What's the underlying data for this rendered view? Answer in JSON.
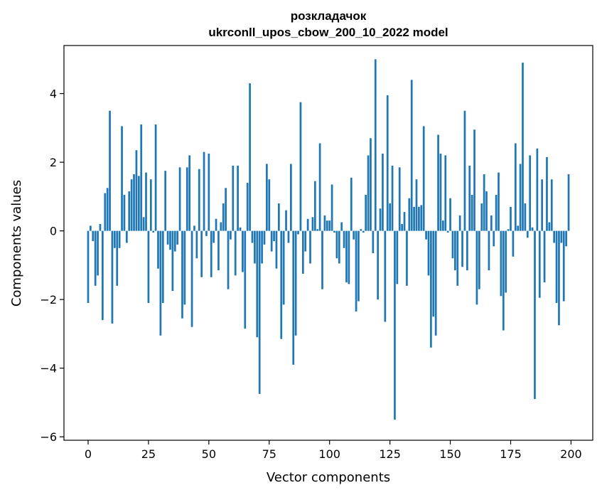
{
  "chart_data": {
    "type": "bar",
    "title": "розкладачок",
    "subtitle": "ukrconll_upos_cbow_200_10_2022 model",
    "xlabel": "Vector components",
    "ylabel": "Components values",
    "xlim": [
      -10,
      209
    ],
    "ylim": [
      -6.1,
      5.4
    ],
    "xticks": [
      0,
      25,
      50,
      75,
      100,
      125,
      150,
      175,
      200
    ],
    "yticks": [
      -6,
      -4,
      -2,
      0,
      2,
      4
    ],
    "ytick_labels": [
      "−6",
      "−4",
      "−2",
      "0",
      "2",
      "4"
    ],
    "grid": false,
    "bar_color": "#1f77b4",
    "values": [
      -2.1,
      0.15,
      -0.3,
      -1.6,
      -1.3,
      0.2,
      -2.6,
      1.1,
      1.25,
      3.5,
      -2.7,
      -0.5,
      -1.6,
      -0.5,
      3.05,
      1.05,
      -0.35,
      1.15,
      1.5,
      1.65,
      2.35,
      1.6,
      3.1,
      0.4,
      1.7,
      -2.1,
      1.5,
      -0.05,
      3.1,
      -1.1,
      -3.05,
      -2.1,
      1.75,
      -0.4,
      -0.55,
      -1.75,
      -0.6,
      -0.4,
      1.85,
      -2.55,
      -2.15,
      1.85,
      2.2,
      -2.8,
      0.15,
      -0.8,
      1.8,
      -1.35,
      2.3,
      -0.15,
      2.25,
      -1.35,
      -0.35,
      0.35,
      -1.15,
      0.25,
      0.8,
      1.25,
      -1.7,
      -0.25,
      1.9,
      -1.3,
      1.9,
      0.1,
      -1.2,
      -2.85,
      1.4,
      4.3,
      -0.35,
      -0.95,
      -3.1,
      -4.75,
      -0.95,
      -0.4,
      1.95,
      1.5,
      -0.6,
      -0.3,
      -1.1,
      0.8,
      -3.15,
      -2.15,
      0.6,
      -0.35,
      1.95,
      -3.9,
      -3.05,
      -0.1,
      3.75,
      -1.25,
      -0.6,
      0.35,
      -0.95,
      0.4,
      1.45,
      0.05,
      2.55,
      -1.7,
      0.45,
      0.3,
      0.3,
      1.35,
      -0.05,
      -0.8,
      -0.95,
      0.25,
      -0.5,
      -1.5,
      -1.55,
      1.55,
      -0.25,
      -2.35,
      -2.05,
      0.05,
      -0.05,
      1.05,
      2.2,
      2.7,
      -0.65,
      5.0,
      -2.0,
      0.65,
      2.25,
      -2.65,
      3.95,
      0.8,
      1.9,
      -5.5,
      -1.55,
      1.85,
      0.2,
      0.55,
      -1.6,
      0.95,
      4.4,
      0.7,
      1.5,
      0.7,
      0.75,
      3.05,
      -0.25,
      -1.3,
      -3.4,
      -2.5,
      -3.05,
      2.8,
      2.25,
      0.3,
      2.2,
      -0.05,
      0.95,
      -0.8,
      -1.15,
      -1.6,
      0.45,
      -1.05,
      3.5,
      -1.15,
      1.9,
      1.05,
      2.95,
      -2.15,
      -1.7,
      0.8,
      1.65,
      1.15,
      -1.15,
      0.45,
      -0.45,
      1.05,
      1.7,
      -1.9,
      -2.9,
      -1.8,
      0.05,
      0.7,
      -0.75,
      2.55,
      0.15,
      1.95,
      4.9,
      0.8,
      -0.2,
      2.2,
      0.1,
      -4.9,
      2.4,
      -1.95,
      1.5,
      -1.5,
      2.15,
      0.25,
      1.5,
      -0.35,
      -2.1,
      -2.75,
      -0.35,
      -2.05,
      -0.45,
      1.65
    ]
  }
}
